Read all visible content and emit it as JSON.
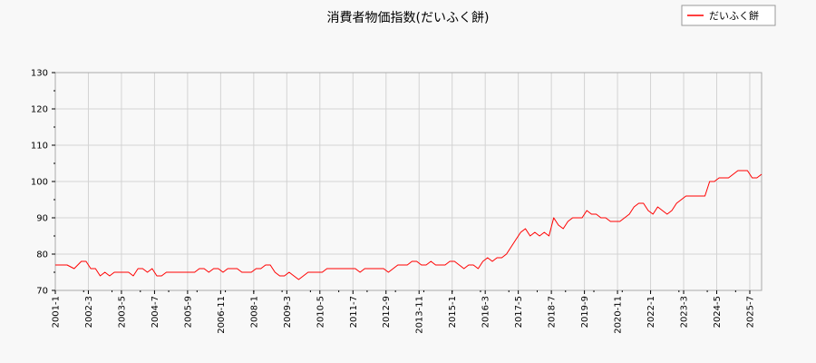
{
  "chart_data": {
    "type": "line",
    "title": "消費者物価指数(だいふく餅)",
    "xlabel": "",
    "ylabel": "",
    "ylim": [
      70,
      130
    ],
    "y_ticks": [
      70,
      80,
      90,
      100,
      110,
      120,
      130
    ],
    "x_start": "2001-1",
    "x_end": "2025-12",
    "x_tick_labels": [
      "2001-1",
      "2002-3",
      "2003-5",
      "2004-7",
      "2005-9",
      "2006-11",
      "2008-1",
      "2009-3",
      "2010-5",
      "2011-7",
      "2012-9",
      "2013-11",
      "2015-1",
      "2016-3",
      "2017-5",
      "2018-7",
      "2019-9",
      "2020-11",
      "2022-1",
      "2023-3",
      "2024-5",
      "2025-7"
    ],
    "grid": true,
    "legend_position": "top-right",
    "series": [
      {
        "name": "だいふく餅",
        "color": "#ff0000",
        "points": [
          [
            "2001-1",
            77
          ],
          [
            "2001-6",
            77
          ],
          [
            "2001-9",
            76
          ],
          [
            "2001-12",
            78
          ],
          [
            "2002-2",
            78
          ],
          [
            "2002-4",
            76
          ],
          [
            "2002-6",
            76
          ],
          [
            "2002-8",
            74
          ],
          [
            "2002-10",
            75
          ],
          [
            "2002-12",
            74
          ],
          [
            "2003-2",
            75
          ],
          [
            "2003-4",
            75
          ],
          [
            "2003-6",
            75
          ],
          [
            "2003-8",
            75
          ],
          [
            "2003-10",
            74
          ],
          [
            "2003-12",
            76
          ],
          [
            "2004-2",
            76
          ],
          [
            "2004-4",
            75
          ],
          [
            "2004-6",
            76
          ],
          [
            "2004-8",
            74
          ],
          [
            "2004-10",
            74
          ],
          [
            "2004-12",
            75
          ],
          [
            "2005-2",
            75
          ],
          [
            "2005-4",
            75
          ],
          [
            "2005-6",
            75
          ],
          [
            "2005-8",
            75
          ],
          [
            "2005-10",
            75
          ],
          [
            "2005-12",
            75
          ],
          [
            "2006-2",
            76
          ],
          [
            "2006-4",
            76
          ],
          [
            "2006-6",
            75
          ],
          [
            "2006-8",
            76
          ],
          [
            "2006-10",
            76
          ],
          [
            "2006-12",
            75
          ],
          [
            "2007-2",
            76
          ],
          [
            "2007-4",
            76
          ],
          [
            "2007-6",
            76
          ],
          [
            "2007-8",
            75
          ],
          [
            "2007-10",
            75
          ],
          [
            "2007-12",
            75
          ],
          [
            "2008-2",
            76
          ],
          [
            "2008-4",
            76
          ],
          [
            "2008-6",
            77
          ],
          [
            "2008-8",
            77
          ],
          [
            "2008-10",
            75
          ],
          [
            "2008-12",
            74
          ],
          [
            "2009-2",
            74
          ],
          [
            "2009-4",
            75
          ],
          [
            "2009-6",
            74
          ],
          [
            "2009-8",
            73
          ],
          [
            "2009-10",
            74
          ],
          [
            "2009-12",
            75
          ],
          [
            "2010-2",
            75
          ],
          [
            "2010-4",
            75
          ],
          [
            "2010-6",
            75
          ],
          [
            "2010-8",
            76
          ],
          [
            "2010-10",
            76
          ],
          [
            "2010-12",
            76
          ],
          [
            "2011-2",
            76
          ],
          [
            "2011-4",
            76
          ],
          [
            "2011-6",
            76
          ],
          [
            "2011-8",
            76
          ],
          [
            "2011-10",
            75
          ],
          [
            "2011-12",
            76
          ],
          [
            "2012-2",
            76
          ],
          [
            "2012-4",
            76
          ],
          [
            "2012-6",
            76
          ],
          [
            "2012-8",
            76
          ],
          [
            "2012-10",
            75
          ],
          [
            "2012-12",
            76
          ],
          [
            "2013-2",
            77
          ],
          [
            "2013-4",
            77
          ],
          [
            "2013-6",
            77
          ],
          [
            "2013-8",
            78
          ],
          [
            "2013-10",
            78
          ],
          [
            "2013-12",
            77
          ],
          [
            "2014-2",
            77
          ],
          [
            "2014-4",
            78
          ],
          [
            "2014-6",
            77
          ],
          [
            "2014-8",
            77
          ],
          [
            "2014-10",
            77
          ],
          [
            "2014-12",
            78
          ],
          [
            "2015-2",
            78
          ],
          [
            "2015-4",
            77
          ],
          [
            "2015-6",
            76
          ],
          [
            "2015-8",
            77
          ],
          [
            "2015-10",
            77
          ],
          [
            "2015-12",
            76
          ],
          [
            "2016-2",
            78
          ],
          [
            "2016-4",
            79
          ],
          [
            "2016-6",
            78
          ],
          [
            "2016-8",
            79
          ],
          [
            "2016-10",
            79
          ],
          [
            "2016-12",
            80
          ],
          [
            "2017-2",
            82
          ],
          [
            "2017-4",
            84
          ],
          [
            "2017-6",
            86
          ],
          [
            "2017-8",
            87
          ],
          [
            "2017-10",
            85
          ],
          [
            "2017-12",
            86
          ],
          [
            "2018-2",
            85
          ],
          [
            "2018-4",
            86
          ],
          [
            "2018-6",
            85
          ],
          [
            "2018-8",
            90
          ],
          [
            "2018-10",
            88
          ],
          [
            "2018-12",
            87
          ],
          [
            "2019-2",
            89
          ],
          [
            "2019-4",
            90
          ],
          [
            "2019-6",
            90
          ],
          [
            "2019-8",
            90
          ],
          [
            "2019-10",
            92
          ],
          [
            "2019-12",
            91
          ],
          [
            "2020-2",
            91
          ],
          [
            "2020-4",
            90
          ],
          [
            "2020-6",
            90
          ],
          [
            "2020-8",
            89
          ],
          [
            "2020-10",
            89
          ],
          [
            "2020-12",
            89
          ],
          [
            "2021-2",
            90
          ],
          [
            "2021-4",
            91
          ],
          [
            "2021-6",
            93
          ],
          [
            "2021-8",
            94
          ],
          [
            "2021-10",
            94
          ],
          [
            "2021-12",
            92
          ],
          [
            "2022-2",
            91
          ],
          [
            "2022-4",
            93
          ],
          [
            "2022-6",
            92
          ],
          [
            "2022-8",
            91
          ],
          [
            "2022-10",
            92
          ],
          [
            "2022-12",
            94
          ],
          [
            "2023-2",
            95
          ],
          [
            "2023-4",
            96
          ],
          [
            "2023-6",
            96
          ],
          [
            "2023-8",
            96
          ],
          [
            "2023-10",
            96
          ],
          [
            "2023-12",
            96
          ],
          [
            "2024-2",
            100
          ],
          [
            "2024-4",
            100
          ],
          [
            "2024-6",
            101
          ],
          [
            "2024-8",
            101
          ],
          [
            "2024-10",
            101
          ],
          [
            "2024-12",
            102
          ],
          [
            "2025-2",
            103
          ],
          [
            "2025-4",
            103
          ],
          [
            "2025-6",
            103
          ],
          [
            "2025-8",
            101
          ],
          [
            "2025-10",
            101
          ],
          [
            "2025-12",
            102
          ]
        ]
      }
    ]
  }
}
